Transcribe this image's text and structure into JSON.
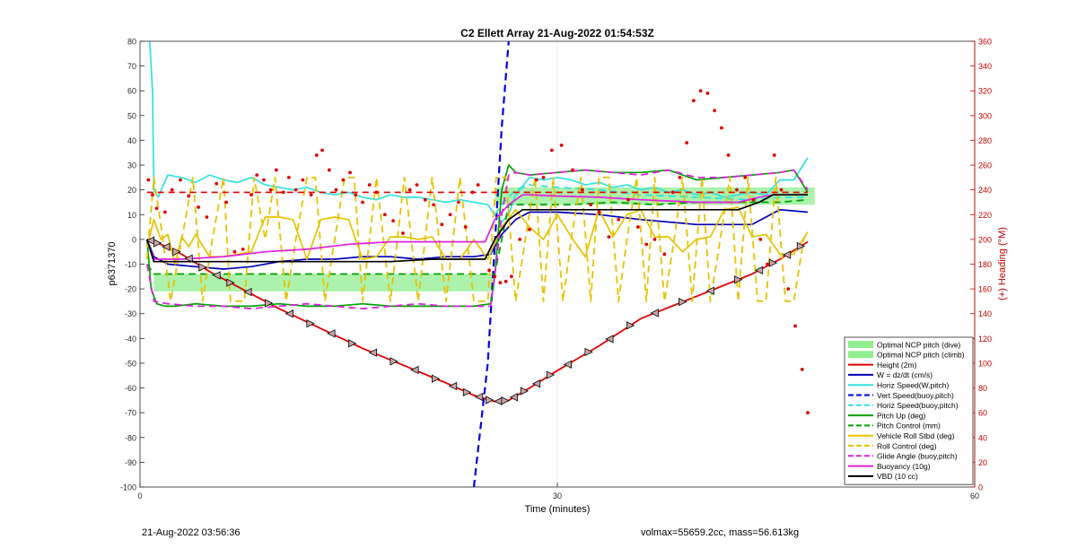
{
  "chart_data": {
    "type": "line",
    "title": "C2 Ellett Array 21-Aug-2022 01:54:53Z",
    "xlabel": "Time (minutes)",
    "ylabel": "p6371370",
    "ylabel_right": "(+) Heading (°M)",
    "xlim": [
      0,
      60
    ],
    "ylim": [
      -100,
      80
    ],
    "ylim_right": [
      0,
      360
    ],
    "x_ticks": [
      0,
      30,
      60
    ],
    "y_ticks": [
      -100,
      -90,
      -80,
      -70,
      -60,
      -50,
      -40,
      -30,
      -20,
      -10,
      0,
      10,
      20,
      30,
      40,
      50,
      60,
      70,
      80
    ],
    "y_right_ticks": [
      0,
      20,
      40,
      60,
      80,
      100,
      120,
      140,
      160,
      180,
      200,
      220,
      240,
      260,
      280,
      300,
      320,
      340,
      360
    ],
    "grid": true,
    "legend_position": "lower-right",
    "colors": {
      "red": "#e00000",
      "blue": "#0000b4",
      "cyan": "#33e0e0",
      "vblue": "#0000dd",
      "green": "#00a000",
      "yellow": "#e6c200",
      "magenta": "#e020e0",
      "black": "#000000",
      "fill": "#90ee90",
      "right_axis": "#c00000"
    },
    "legend": [
      {
        "label": "Optimal NCP pitch (dive)",
        "color": "#90ee90",
        "style": "patch"
      },
      {
        "label": "Optimal NCP pitch (climb)",
        "color": "#90ee90",
        "style": "patch"
      },
      {
        "label": "Height (2m)",
        "color": "#e00000",
        "style": "solid"
      },
      {
        "label": "W = dz/dt (cm/s)",
        "color": "#0000b4",
        "style": "solid"
      },
      {
        "label": "Horiz Speed(W,pitch)",
        "color": "#33e0e0",
        "style": "solid"
      },
      {
        "label": "Vert Speed(buoy,pitch)",
        "color": "#0000dd",
        "style": "dashed"
      },
      {
        "label": "Horiz Speed(buoy,pitch)",
        "color": "#33e0e0",
        "style": "dashed"
      },
      {
        "label": "Pitch Up (deg)",
        "color": "#00a000",
        "style": "solid"
      },
      {
        "label": "Pitch Control (mm)",
        "color": "#00a000",
        "style": "dashed"
      },
      {
        "label": "Vehicle Roll Stbd (deg)",
        "color": "#e6c200",
        "style": "solid"
      },
      {
        "label": "Roll Control (deg)",
        "color": "#e6c200",
        "style": "dashed"
      },
      {
        "label": "Glide Angle (buoy,pitch)",
        "color": "#e020e0",
        "style": "dashed"
      },
      {
        "label": "Buoyancy (10g)",
        "color": "#e020e0",
        "style": "solid"
      },
      {
        "label": "VBD (10 cc)",
        "color": "#000000",
        "style": "solid"
      }
    ],
    "fills": [
      {
        "name": "Optimal NCP pitch (dive)",
        "x": [
          1,
          25.5
        ],
        "y": [
          -21,
          -14
        ]
      },
      {
        "name": "Optimal NCP pitch (climb)",
        "x": [
          25.5,
          48.5
        ],
        "y": [
          14,
          21
        ]
      }
    ],
    "series": [
      {
        "name": "Height (2m)",
        "color": "#e00000",
        "style": "solid",
        "x": [
          0.5,
          1.5,
          3,
          5,
          7,
          10,
          13,
          16,
          19,
          22,
          24,
          25.5,
          26.5,
          28,
          30,
          33,
          36,
          40,
          44,
          46,
          48
        ],
        "y": [
          0,
          -2,
          -6,
          -13,
          -19,
          -28,
          -36,
          -44,
          -51,
          -58,
          -63,
          -65.5,
          -65,
          -60,
          -53,
          -43,
          -32,
          -23,
          -14,
          -8,
          -1
        ]
      },
      {
        "name": "W = dz/dt (cm/s)",
        "color": "#0000b4",
        "style": "solid",
        "x": [
          0.5,
          1,
          2,
          4,
          6,
          8,
          10,
          12,
          14,
          16,
          18,
          20,
          22,
          24,
          25.2,
          26,
          27,
          28,
          30,
          33,
          36,
          40,
          44,
          46,
          48
        ],
        "y": [
          0,
          -7,
          -10,
          -11,
          -12,
          -11,
          -9,
          -8,
          -8,
          -7,
          -7,
          -8,
          -7,
          -7,
          -6,
          2,
          8,
          11,
          11,
          10,
          8,
          6,
          6,
          12,
          11
        ]
      },
      {
        "name": "Horiz Speed(W,pitch)",
        "color": "#33e0e0",
        "style": "solid",
        "x": [
          0.7,
          0.9,
          1.0,
          1.3,
          2,
          3,
          4,
          5,
          6,
          7,
          8,
          9,
          10,
          11,
          12,
          13,
          14,
          15,
          16,
          17,
          18,
          19,
          20,
          21,
          22,
          23,
          24,
          25,
          25.5,
          26,
          26.5,
          27,
          28,
          29,
          30,
          31,
          32,
          33,
          34,
          35,
          36,
          37,
          38,
          39,
          40,
          41,
          42,
          43,
          44,
          45,
          46,
          47,
          48
        ],
        "y": [
          80,
          60,
          20,
          17,
          26,
          25,
          23,
          26,
          24,
          23,
          25,
          22,
          21,
          20,
          21,
          19,
          18,
          19,
          17,
          16,
          18,
          17,
          17,
          16,
          15,
          16,
          15,
          14,
          10,
          7,
          10,
          18,
          25,
          24,
          25,
          24,
          22,
          23,
          21,
          22,
          20,
          21,
          19,
          20,
          18,
          19,
          17,
          18,
          19,
          18,
          24,
          24,
          33
        ]
      },
      {
        "name": "Vert Speed(buoy,pitch)",
        "color": "#0000dd",
        "style": "dashed",
        "x": [
          24,
          25.0,
          26.0,
          26.5
        ],
        "y": [
          -100,
          -50,
          45,
          80
        ]
      },
      {
        "name": "Horiz Speed(buoy,pitch)",
        "color": "#33e0e0",
        "style": "dashed",
        "x": [
          25.5,
          26,
          27,
          28,
          30,
          33,
          36,
          40,
          44,
          46,
          48
        ],
        "y": [
          10,
          14,
          20,
          22,
          21,
          20,
          18,
          17,
          16,
          17,
          17
        ]
      },
      {
        "name": "Pitch Up (deg)",
        "color": "#00a000",
        "style": "solid",
        "x": [
          0.5,
          0.8,
          1.2,
          1.8,
          2.5,
          4,
          6,
          8,
          10,
          12,
          14,
          16,
          18,
          20,
          22,
          24,
          25.2,
          25.5,
          26.0,
          26.5,
          27,
          28,
          30,
          32,
          34,
          36,
          38,
          40,
          42,
          44,
          46,
          47,
          48
        ],
        "y": [
          0,
          -20,
          -26,
          -27,
          -27,
          -26,
          -27,
          -27,
          -26,
          -27,
          -27,
          -26,
          -27,
          -27,
          -27,
          -27,
          -26,
          -15,
          20,
          30,
          27,
          26,
          27,
          28,
          27,
          27,
          28,
          24,
          25,
          26,
          27,
          28,
          19
        ]
      },
      {
        "name": "Pitch Control (mm)",
        "color": "#00a000",
        "style": "dashed",
        "x": [
          0.5,
          1,
          3,
          6,
          9,
          12,
          15,
          18,
          21,
          24,
          25.5,
          26.5,
          28,
          31,
          34,
          37,
          40,
          43,
          46,
          48
        ],
        "y": [
          -10,
          -14,
          -14,
          -14,
          -14,
          -14,
          -14,
          -14,
          -14,
          -14,
          -14,
          14,
          14,
          14,
          15,
          14,
          15,
          15,
          15,
          16
        ]
      },
      {
        "name": "Vehicle Roll Stbd (deg)",
        "color": "#e6c200",
        "style": "solid",
        "x": [
          0.5,
          1,
          1.5,
          2,
          2.5,
          3,
          3.5,
          4,
          5,
          6,
          7,
          8,
          9,
          10,
          11,
          12,
          13,
          14,
          15,
          16,
          17,
          18,
          19,
          20,
          21,
          22,
          23,
          24,
          25,
          26,
          27,
          28,
          29,
          30,
          31,
          32,
          33,
          34,
          35,
          36,
          37,
          38,
          39,
          40,
          41,
          42,
          43,
          44,
          45,
          46,
          47,
          48
        ],
        "y": [
          -3,
          8,
          0,
          2,
          -10,
          1,
          -3,
          2,
          -7,
          -7,
          -6,
          -5,
          9,
          9,
          8,
          -8,
          8,
          9,
          8,
          -8,
          -7,
          1,
          1,
          0,
          1,
          -8,
          -8,
          0,
          -8,
          5,
          12,
          5,
          0,
          10,
          1,
          -7,
          12,
          1,
          10,
          12,
          1,
          1,
          -5,
          0,
          1,
          12,
          13,
          1,
          2,
          -6,
          -6,
          3
        ]
      },
      {
        "name": "Roll Control (deg)",
        "color": "#e6c200",
        "style": "dashed",
        "x": [
          0.5,
          1,
          1.6,
          2.2,
          3,
          3.8,
          4.5,
          5.2,
          6,
          6.5,
          7.5,
          8.2,
          9,
          9.7,
          10.5,
          11.2,
          12,
          12.6,
          13.3,
          14,
          14.7,
          15.4,
          16,
          17,
          18,
          19,
          20,
          21,
          22,
          23,
          24,
          25,
          25.6,
          26.3,
          27,
          27.7,
          28.4,
          29,
          29.7,
          30.4,
          31,
          31.7,
          32.4,
          33,
          33.7,
          34.4,
          35,
          35.7,
          36.4,
          37,
          37.7,
          38.4,
          39,
          39.7,
          40.4,
          41,
          41.7,
          42.4,
          43,
          43.7,
          44.4,
          45,
          45.7,
          46.4,
          47,
          47.7,
          48
        ],
        "y": [
          -8,
          25,
          2,
          -25,
          0,
          25,
          -25,
          0,
          25,
          -25,
          -25,
          25,
          0,
          25,
          -25,
          0,
          25,
          25,
          -25,
          0,
          25,
          25,
          -25,
          25,
          -25,
          25,
          -25,
          25,
          -25,
          25,
          -25,
          -25,
          25,
          25,
          -25,
          0,
          25,
          -25,
          25,
          -25,
          0,
          25,
          -25,
          25,
          25,
          -25,
          0,
          25,
          -25,
          25,
          -25,
          0,
          25,
          -25,
          25,
          -25,
          0,
          25,
          -25,
          25,
          -25,
          -25,
          25,
          -25,
          -25,
          0,
          3
        ]
      },
      {
        "name": "Glide Angle (buoy,pitch)",
        "color": "#e020e0",
        "style": "dashed",
        "x": [
          0.5,
          1,
          2,
          4,
          6,
          8,
          10,
          12,
          14,
          16,
          18,
          20,
          22,
          24,
          25.2,
          25.6,
          26,
          26.5,
          27,
          28,
          30,
          32,
          34,
          36,
          38,
          40,
          42,
          44,
          46,
          47,
          48
        ],
        "y": [
          -10,
          -25,
          -26,
          -27,
          -27,
          -28,
          -27,
          -26,
          -27,
          -28,
          -27,
          -26,
          -27,
          -27,
          -27,
          -10,
          10,
          26,
          27,
          26,
          27,
          28,
          27,
          26,
          28,
          25,
          25,
          26,
          27,
          28,
          20
        ]
      },
      {
        "name": "Buoyancy (10g)",
        "color": "#e020e0",
        "style": "solid",
        "x": [
          0.5,
          1,
          3,
          6,
          9,
          12,
          15,
          18,
          21,
          24,
          24.8,
          25.5,
          26.5,
          27.5,
          28,
          30,
          33,
          36,
          40,
          43,
          44.5,
          45.5,
          48
        ],
        "y": [
          0,
          -8,
          -8,
          -7,
          -5,
          -4,
          -2,
          -1,
          -1,
          -1,
          -1,
          8,
          14,
          18,
          18,
          17.5,
          17,
          16,
          15,
          15,
          17,
          18,
          18
        ]
      },
      {
        "name": "VBD (10 cc)",
        "color": "#000000",
        "style": "solid",
        "x": [
          0.5,
          1,
          3,
          6,
          9,
          12,
          15,
          18,
          21,
          24,
          24.8,
          25.5,
          26.5,
          27.5,
          28,
          30,
          33,
          36,
          40,
          43,
          44.5,
          45.5,
          48
        ],
        "y": [
          0,
          -9,
          -9,
          -9,
          -9,
          -9,
          -9,
          -9,
          -8,
          -8,
          -8,
          0,
          8,
          12,
          12,
          12,
          12,
          12,
          12,
          12,
          15,
          18,
          18
        ]
      }
    ],
    "heading_reference": {
      "y": 238,
      "x": [
        0.5,
        25.5
      ],
      "x2": [
        25.5,
        48
      ],
      "y2": 238,
      "color": "#e00000"
    },
    "heading_points": {
      "color": "#e00000",
      "x": [
        0.6,
        0.9,
        1.2,
        1.8,
        2.3,
        2.9,
        3.5,
        4.2,
        4.8,
        5.5,
        6.2,
        6.8,
        7.4,
        8.0,
        8.4,
        8.9,
        9.4,
        9.8,
        10.3,
        10.7,
        11.2,
        11.7,
        12.3,
        12.7,
        13.1,
        13.6,
        14.1,
        14.6,
        15.1,
        15.5,
        16.0,
        16.5,
        17.0,
        17.6,
        18.2,
        18.9,
        19.4,
        19.9,
        20.5,
        21.1,
        21.7,
        22.3,
        22.9,
        23.4,
        23.9,
        24.3,
        25.1,
        25.5,
        25.9,
        26.3,
        26.7,
        27.3,
        28.0,
        28.5,
        29.0,
        29.6,
        30.3,
        31.1,
        31.8,
        32.4,
        33.0,
        33.7,
        34.4,
        35.1,
        35.8,
        36.4,
        37.0,
        37.7,
        38.3,
        38.8,
        39.3,
        39.8,
        40.3,
        40.8,
        41.3,
        41.8,
        42.3,
        42.9,
        43.5,
        44.1,
        44.6,
        45.1,
        45.6,
        46.1,
        46.6,
        47.1,
        47.6,
        48.0
      ],
      "y": [
        248,
        236,
        225,
        222,
        240,
        248,
        235,
        226,
        218,
        245,
        230,
        190,
        192,
        236,
        252,
        248,
        240,
        256,
        238,
        250,
        240,
        248,
        236,
        268,
        272,
        256,
        240,
        248,
        254,
        236,
        230,
        244,
        238,
        220,
        215,
        205,
        240,
        244,
        232,
        228,
        212,
        220,
        230,
        210,
        238,
        244,
        175,
        170,
        165,
        166,
        170,
        200,
        208,
        248,
        250,
        272,
        276,
        256,
        240,
        228,
        222,
        202,
        216,
        232,
        210,
        196,
        200,
        188,
        238,
        250,
        278,
        312,
        320,
        318,
        304,
        290,
        268,
        240,
        250,
        232,
        200,
        180,
        268,
        240,
        160,
        130,
        95,
        60
      ]
    }
  },
  "footer": {
    "left": "21-Aug-2022 03:56:36",
    "right": "volmax=55659.2cc, mass=56.613kg"
  }
}
